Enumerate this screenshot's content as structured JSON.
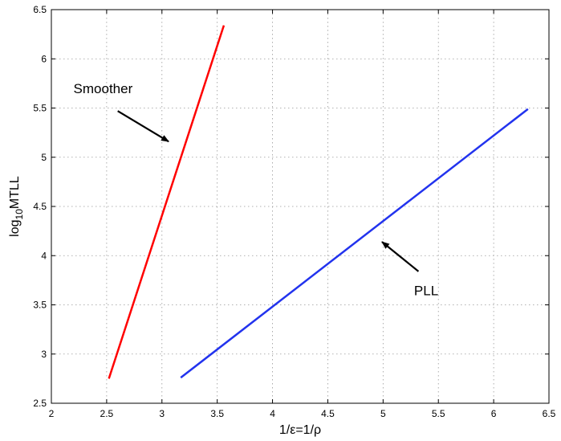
{
  "chart_data": {
    "type": "line",
    "xlabel": "1/ε=1/ρ",
    "ylabel_main": "log",
    "ylabel_sub": "10",
    "ylabel_rest": "MTLL",
    "xlim": [
      2,
      6.5
    ],
    "ylim": [
      2.5,
      6.5
    ],
    "xticks": [
      "2",
      "2.5",
      "3",
      "3.5",
      "4",
      "4.5",
      "5",
      "5.5",
      "6",
      "6.5"
    ],
    "yticks": [
      "2.5",
      "3",
      "3.5",
      "4",
      "4.5",
      "5",
      "5.5",
      "6",
      "6.5"
    ],
    "grid": true,
    "series": [
      {
        "name": "Smoother",
        "color": "#ff0000",
        "x": [
          2.52,
          3.56
        ],
        "y": [
          2.75,
          6.34
        ]
      },
      {
        "name": "PLL",
        "color": "#2233ee",
        "x": [
          3.17,
          6.31
        ],
        "y": [
          2.76,
          5.49
        ]
      }
    ],
    "annotations": [
      {
        "text": "Smoother",
        "label_x": 2.2,
        "label_y": 5.65,
        "arrow_from": [
          2.6,
          5.47
        ],
        "arrow_to": [
          3.06,
          5.16
        ]
      },
      {
        "text": "PLL",
        "label_x": 5.28,
        "label_y": 3.6,
        "arrow_from": [
          5.32,
          3.84
        ],
        "arrow_to": [
          4.99,
          4.14
        ]
      }
    ]
  }
}
